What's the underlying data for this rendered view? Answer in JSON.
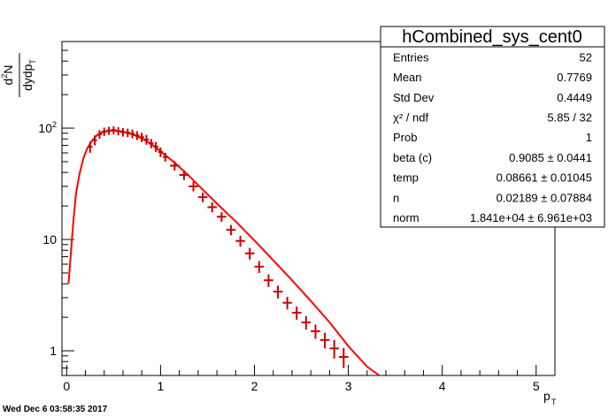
{
  "canvas": {
    "timestamp": "Wed Dec  6 03:58:35 2017",
    "background": "#ffffff",
    "series_color": "#ff0000",
    "marker_color": "#cc0000"
  },
  "stats": {
    "title": "hCombined_sys_cent0",
    "rows": [
      {
        "label": "Entries",
        "value": "52"
      },
      {
        "label": "Mean",
        "value": "0.7769"
      },
      {
        "label": "Std Dev",
        "value": "0.4449"
      },
      {
        "label": "χ² / ndf",
        "value": "5.85 / 32"
      },
      {
        "label": "Prob",
        "value": "1"
      },
      {
        "label": "beta (c)",
        "value": "0.9085 ± 0.0441"
      },
      {
        "label": "temp",
        "value": "0.08661 ± 0.01045"
      },
      {
        "label": "n",
        "value": "0.02189 ± 0.07884"
      },
      {
        "label": "norm",
        "value": "1.841e+04 ± 6.961e+03"
      }
    ]
  },
  "chart_data": {
    "type": "scatter",
    "title": "",
    "xlabel": "p_T",
    "ylabel": "d²N/dydp_T",
    "xlim": [
      -0.05,
      5.2
    ],
    "ylim": [
      0.6,
      600
    ],
    "yscale": "log",
    "grid": false,
    "legend": "none",
    "x_ticks": [
      "0",
      "1",
      "2",
      "3",
      "4",
      "5"
    ],
    "y_ticks": [
      "1",
      "10",
      "10²"
    ],
    "series": [
      {
        "kind": "points",
        "x": [
          0.25,
          0.3,
          0.35,
          0.4,
          0.45,
          0.5,
          0.55,
          0.6,
          0.65,
          0.7,
          0.75,
          0.8,
          0.85,
          0.9,
          0.95,
          1.0,
          1.05,
          1.15,
          1.25,
          1.35,
          1.45,
          1.55,
          1.65,
          1.75,
          1.85,
          1.95,
          2.05,
          2.15,
          2.25,
          2.35,
          2.45,
          2.55,
          2.65,
          2.75,
          2.85,
          2.95
        ],
        "y": [
          68,
          78,
          88,
          93,
          95,
          96,
          94,
          92,
          91,
          89,
          86,
          83,
          79,
          73,
          68,
          61,
          55,
          46,
          38,
          30,
          24,
          19.5,
          16,
          12.2,
          9.7,
          7.5,
          5.7,
          4.3,
          3.4,
          2.7,
          2.2,
          1.8,
          1.5,
          1.25,
          1.05,
          0.88
        ],
        "x_err": [
          0.025,
          0.025,
          0.025,
          0.025,
          0.025,
          0.025,
          0.025,
          0.025,
          0.025,
          0.025,
          0.025,
          0.025,
          0.025,
          0.025,
          0.025,
          0.025,
          0.025,
          0.05,
          0.05,
          0.05,
          0.05,
          0.05,
          0.05,
          0.05,
          0.05,
          0.05,
          0.05,
          0.05,
          0.05,
          0.05,
          0.05,
          0.05,
          0.05,
          0.05,
          0.05,
          0.05
        ],
        "y_err": [
          8,
          8,
          8,
          8,
          8,
          8,
          8,
          8,
          8,
          8,
          8,
          8,
          8,
          7,
          7,
          6,
          5,
          4.5,
          3.8,
          3,
          2.4,
          2,
          1.6,
          1.3,
          1.1,
          0.9,
          0.7,
          0.55,
          0.45,
          0.35,
          0.3,
          0.25,
          0.22,
          0.2,
          0.2,
          0.18
        ]
      },
      {
        "kind": "fit",
        "x": [
          0.02,
          0.04,
          0.07,
          0.1,
          0.14,
          0.18,
          0.22,
          0.27,
          0.32,
          0.38,
          0.45,
          0.52,
          0.6,
          0.7,
          0.8,
          0.9,
          1.0,
          1.15,
          1.3,
          1.45,
          1.6,
          1.8,
          2.0,
          2.2,
          2.4,
          2.6,
          2.8,
          3.0,
          3.2,
          3.33
        ],
        "y": [
          4,
          6.5,
          14,
          26,
          40,
          54,
          66,
          77,
          86,
          92,
          95,
          95,
          93,
          88,
          81,
          72,
          62,
          49,
          37.5,
          28,
          21,
          14.5,
          9.8,
          6.5,
          4.3,
          2.8,
          1.8,
          1.1,
          0.72,
          0.58
        ]
      }
    ]
  }
}
